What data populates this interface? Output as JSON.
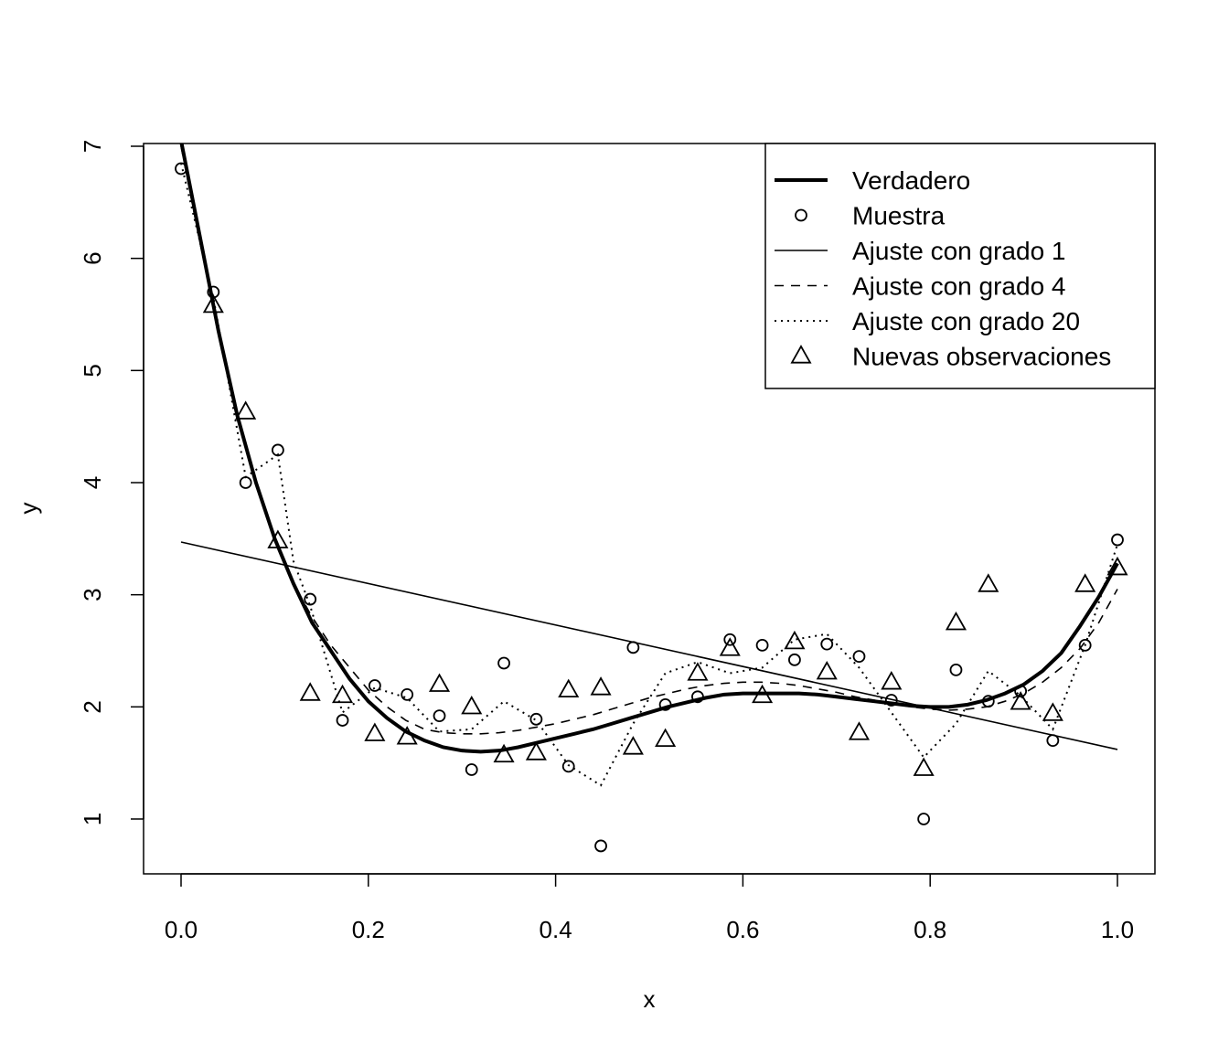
{
  "chart_data": {
    "type": "scatter",
    "title": "",
    "xlabel": "x",
    "ylabel": "y",
    "xlim": [
      0,
      1
    ],
    "ylim": [
      0.5,
      7
    ],
    "grid": false,
    "legend_position": "top-right",
    "x_ticks": [
      "0.0",
      "0.2",
      "0.4",
      "0.6",
      "0.8",
      "1.0"
    ],
    "y_ticks": [
      "1",
      "2",
      "3",
      "4",
      "5",
      "6",
      "7"
    ],
    "legend": [
      {
        "label": "Verdadero",
        "symbol": "thick-line"
      },
      {
        "label": "Muestra",
        "symbol": "circle"
      },
      {
        "label": "Ajuste con grado 1",
        "symbol": "thin-line"
      },
      {
        "label": "Ajuste con grado 4",
        "symbol": "dashed-line"
      },
      {
        "label": "Ajuste con grado 20",
        "symbol": "dotted-line"
      },
      {
        "label": "Nuevas observaciones",
        "symbol": "triangle"
      }
    ],
    "series": [
      {
        "name": "Verdadero",
        "style": "thick-line",
        "x": [
          0.0,
          0.02,
          0.04,
          0.06,
          0.08,
          0.1,
          0.12,
          0.14,
          0.16,
          0.18,
          0.2,
          0.22,
          0.24,
          0.26,
          0.28,
          0.3,
          0.32,
          0.34,
          0.36,
          0.38,
          0.4,
          0.42,
          0.44,
          0.46,
          0.48,
          0.5,
          0.52,
          0.54,
          0.56,
          0.58,
          0.6,
          0.62,
          0.64,
          0.66,
          0.68,
          0.7,
          0.72,
          0.74,
          0.76,
          0.78,
          0.8,
          0.82,
          0.84,
          0.86,
          0.88,
          0.9,
          0.92,
          0.94,
          0.96,
          0.98,
          1.0
        ],
        "y": [
          7.05,
          6.2,
          5.35,
          4.6,
          4.0,
          3.5,
          3.1,
          2.75,
          2.5,
          2.25,
          2.05,
          1.9,
          1.78,
          1.7,
          1.64,
          1.61,
          1.6,
          1.61,
          1.64,
          1.68,
          1.72,
          1.76,
          1.8,
          1.85,
          1.9,
          1.95,
          2.0,
          2.04,
          2.08,
          2.11,
          2.12,
          2.12,
          2.12,
          2.12,
          2.11,
          2.09,
          2.07,
          2.05,
          2.03,
          2.01,
          2.0,
          2.0,
          2.02,
          2.06,
          2.12,
          2.2,
          2.32,
          2.48,
          2.72,
          2.98,
          3.28
        ]
      },
      {
        "name": "Muestra",
        "style": "circle",
        "x": [
          0.0,
          0.0345,
          0.069,
          0.1034,
          0.1379,
          0.1724,
          0.2069,
          0.2414,
          0.2759,
          0.3103,
          0.3448,
          0.3793,
          0.4138,
          0.4483,
          0.4828,
          0.5172,
          0.5517,
          0.5862,
          0.6207,
          0.6552,
          0.6897,
          0.7241,
          0.7586,
          0.7931,
          0.8276,
          0.8621,
          0.8966,
          0.931,
          0.9655,
          1.0
        ],
        "y": [
          6.8,
          5.7,
          4.0,
          4.29,
          2.96,
          1.88,
          2.19,
          2.11,
          1.92,
          1.44,
          2.39,
          1.89,
          1.47,
          0.76,
          2.53,
          2.02,
          2.09,
          2.6,
          2.55,
          2.42,
          2.56,
          2.45,
          2.06,
          1.0,
          2.33,
          2.05,
          2.14,
          1.7,
          2.55,
          3.49
        ]
      },
      {
        "name": "Ajuste con grado 1",
        "style": "thin-line",
        "x": [
          0.0,
          1.0
        ],
        "y": [
          3.47,
          1.62
        ]
      },
      {
        "name": "Ajuste con grado 4",
        "style": "dashed-line",
        "x": [
          0.0,
          0.02,
          0.04,
          0.06,
          0.08,
          0.1,
          0.12,
          0.14,
          0.16,
          0.18,
          0.2,
          0.22,
          0.24,
          0.26,
          0.28,
          0.3,
          0.32,
          0.34,
          0.36,
          0.38,
          0.4,
          0.42,
          0.44,
          0.46,
          0.48,
          0.5,
          0.52,
          0.54,
          0.56,
          0.58,
          0.6,
          0.62,
          0.64,
          0.66,
          0.68,
          0.7,
          0.72,
          0.74,
          0.76,
          0.78,
          0.8,
          0.82,
          0.84,
          0.86,
          0.88,
          0.9,
          0.92,
          0.94,
          0.96,
          0.98,
          1.0
        ],
        "y": [
          7.0,
          6.15,
          5.35,
          4.6,
          4.0,
          3.5,
          3.1,
          2.8,
          2.55,
          2.35,
          2.15,
          2.0,
          1.88,
          1.8,
          1.77,
          1.76,
          1.76,
          1.77,
          1.79,
          1.82,
          1.85,
          1.89,
          1.93,
          1.98,
          2.03,
          2.08,
          2.12,
          2.16,
          2.19,
          2.21,
          2.22,
          2.22,
          2.21,
          2.19,
          2.16,
          2.13,
          2.09,
          2.06,
          2.03,
          2.0,
          1.98,
          1.97,
          1.98,
          2.0,
          2.05,
          2.12,
          2.22,
          2.35,
          2.52,
          2.75,
          3.05
        ]
      },
      {
        "name": "Ajuste con grado 20",
        "style": "dotted-line",
        "x": [
          0.0,
          0.0345,
          0.069,
          0.1034,
          0.12,
          0.1379,
          0.1724,
          0.2069,
          0.2414,
          0.2759,
          0.3103,
          0.3448,
          0.3793,
          0.4138,
          0.4483,
          0.4828,
          0.5172,
          0.5517,
          0.5862,
          0.6207,
          0.6552,
          0.6897,
          0.7241,
          0.7586,
          0.7931,
          0.8276,
          0.8621,
          0.8966,
          0.931,
          0.9655,
          1.0
        ],
        "y": [
          6.85,
          5.65,
          4.05,
          4.25,
          3.3,
          2.9,
          1.95,
          2.17,
          2.08,
          1.78,
          1.8,
          2.05,
          1.88,
          1.48,
          1.3,
          1.85,
          2.3,
          2.4,
          2.3,
          2.35,
          2.6,
          2.65,
          2.35,
          1.95,
          1.55,
          1.85,
          2.32,
          2.1,
          1.8,
          2.55,
          3.45
        ]
      },
      {
        "name": "Nuevas observaciones",
        "style": "triangle",
        "x": [
          0.0345,
          0.069,
          0.1034,
          0.1379,
          0.1724,
          0.2069,
          0.2414,
          0.2759,
          0.3103,
          0.3448,
          0.3793,
          0.4138,
          0.4483,
          0.4828,
          0.5172,
          0.5517,
          0.5862,
          0.6207,
          0.6552,
          0.6897,
          0.7241,
          0.7586,
          0.7931,
          0.8276,
          0.8621,
          0.8966,
          0.931,
          0.9655,
          1.0
        ],
        "y": [
          5.58,
          4.63,
          3.48,
          2.12,
          2.1,
          1.76,
          1.73,
          2.2,
          2.0,
          1.57,
          1.59,
          2.15,
          2.17,
          1.64,
          1.71,
          2.3,
          2.52,
          2.1,
          2.58,
          2.31,
          1.77,
          2.22,
          1.45,
          2.75,
          3.09,
          2.04,
          1.94,
          3.09,
          3.24
        ]
      }
    ]
  }
}
